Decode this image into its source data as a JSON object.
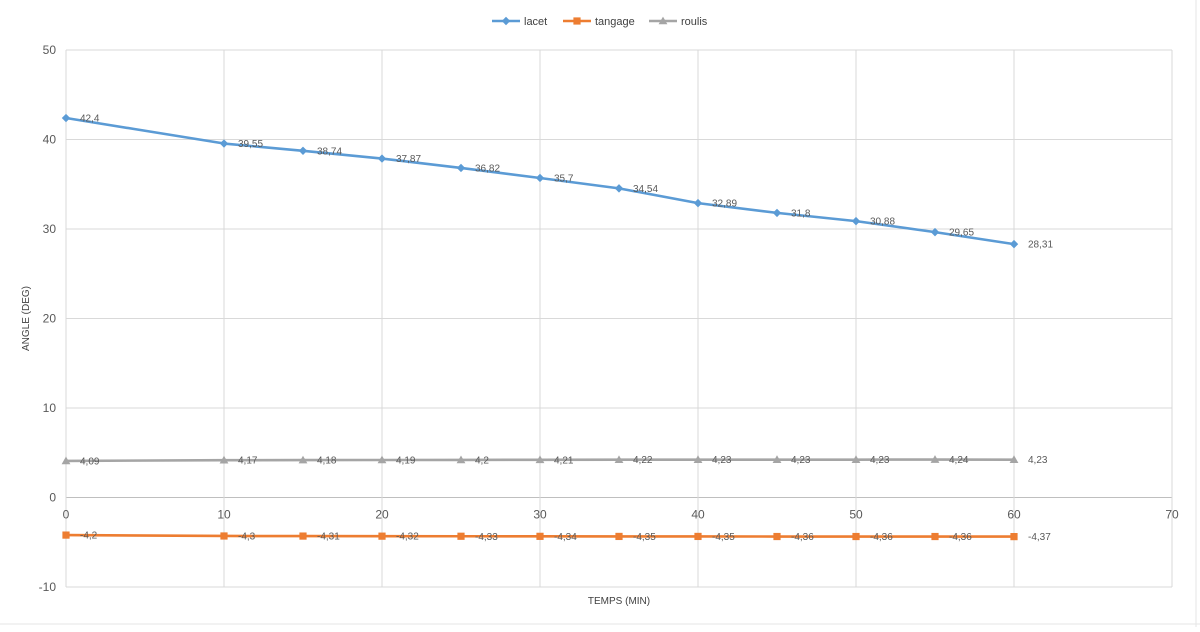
{
  "chart_data": {
    "type": "line",
    "xlabel": "TEMPS (MIN)",
    "ylabel": "ANGLE (DEG)",
    "xlim": [
      0,
      70
    ],
    "ylim": [
      -10,
      50
    ],
    "x_ticks": [
      "0",
      "10",
      "20",
      "30",
      "40",
      "50",
      "60",
      "70"
    ],
    "y_ticks": [
      "-10",
      "0",
      "10",
      "20",
      "30",
      "40",
      "50"
    ],
    "grid": true,
    "legend_position": "top",
    "x": [
      0,
      10,
      15,
      20,
      25,
      30,
      35,
      40,
      45,
      50,
      55,
      60
    ],
    "series": [
      {
        "name": "lacet",
        "color": "#5b9bd5",
        "marker": "diamond",
        "values": [
          42.4,
          39.55,
          38.74,
          37.87,
          36.82,
          35.7,
          34.54,
          32.89,
          31.8,
          30.88,
          29.65,
          28.31
        ],
        "labels": [
          "42,4",
          "39,55",
          "38,74",
          "37,87",
          "36,82",
          "35,7",
          "34,54",
          "32,89",
          "31,8",
          "30,88",
          "29,65",
          "28,31"
        ]
      },
      {
        "name": "tangage",
        "color": "#ed7d31",
        "marker": "square",
        "values": [
          -4.2,
          -4.3,
          -4.31,
          -4.32,
          -4.33,
          -4.34,
          -4.35,
          -4.35,
          -4.36,
          -4.36,
          -4.36,
          -4.37
        ],
        "labels": [
          "-4,2",
          "-4,3",
          "-4,31",
          "-4,32",
          "-4,33",
          "-4,34",
          "-4,35",
          "-4,35",
          "-4,36",
          "-4,36",
          "-4,36",
          "-4,37"
        ]
      },
      {
        "name": "roulis",
        "color": "#a5a5a5",
        "marker": "triangle",
        "values": [
          4.09,
          4.17,
          4.18,
          4.19,
          4.2,
          4.21,
          4.22,
          4.23,
          4.23,
          4.23,
          4.24,
          4.23
        ],
        "labels": [
          "4,09",
          "4,17",
          "4,18",
          "4,19",
          "4,2",
          "4,21",
          "4,22",
          "4,23",
          "4,23",
          "4,23",
          "4,24",
          "4,23"
        ]
      }
    ]
  }
}
